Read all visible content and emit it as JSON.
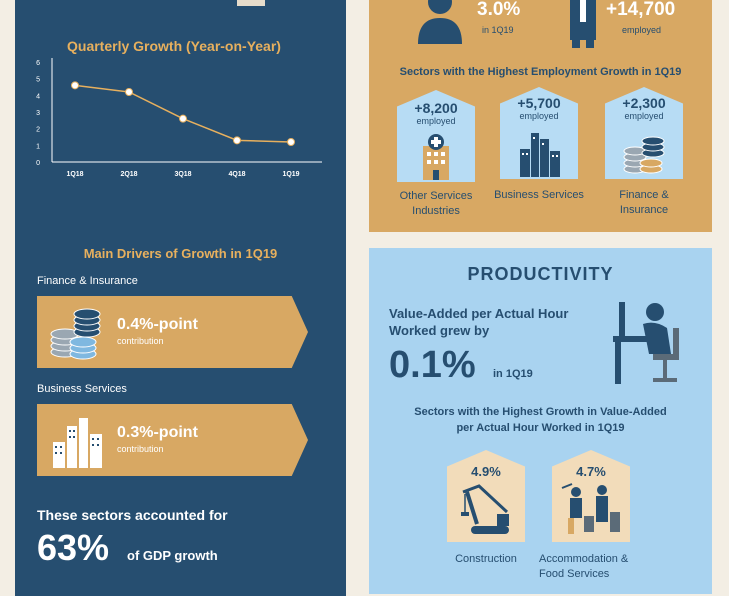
{
  "left": {
    "chart_title": "Quarterly Growth (Year-on-Year)",
    "drivers_title": "Main Drivers of Growth in 1Q19",
    "driver1": {
      "name": "Finance & Insurance",
      "value": "0.4%-point",
      "sub": "contribution"
    },
    "driver2": {
      "name": "Business Services",
      "value": "0.3%-point",
      "sub": "contribution"
    },
    "summary_line": "These sectors accounted for",
    "summary_pct": "63%",
    "summary_tail": "of GDP growth"
  },
  "chart_data": {
    "type": "line",
    "title": "Quarterly Growth (Year-on-Year)",
    "categories": [
      "1Q18",
      "2Q18",
      "3Q18",
      "4Q18",
      "1Q19"
    ],
    "values": [
      4.6,
      4.2,
      2.6,
      1.3,
      1.2
    ],
    "y_ticks": [
      "0",
      "1",
      "2",
      "3",
      "4",
      "5",
      "6"
    ],
    "ylim": [
      0,
      6
    ],
    "grid": false,
    "colors": {
      "line": "#e7b05e",
      "point": "#ffffff"
    }
  },
  "employment": {
    "stat1_value": "3.0%",
    "stat1_sub": "in 1Q19",
    "stat2_value": "+14,700",
    "stat2_sub": "employed",
    "sectors_title": "Sectors with the Highest Employment Growth in 1Q19",
    "sectors": [
      {
        "value": "+8,200",
        "sub": "employed",
        "label": "Other Services Industries"
      },
      {
        "value": "+5,700",
        "sub": "employed",
        "label": "Business Services"
      },
      {
        "value": "+2,300",
        "sub": "employed",
        "label": "Finance & Insurance"
      }
    ]
  },
  "productivity": {
    "title": "PRODUCTIVITY",
    "desc_line1": "Value-Added per Actual Hour",
    "desc_line2": "Worked grew by",
    "value": "0.1%",
    "value_sub": "in 1Q19",
    "sectors_title_line1": "Sectors with the Highest Growth in Value-Added",
    "sectors_title_line2": "per Actual Hour Worked in 1Q19",
    "sectors": [
      {
        "value": "4.9%",
        "label": "Construction"
      },
      {
        "value": "4.7%",
        "label": "Accommodation & Food Services"
      }
    ]
  },
  "colors": {
    "navy": "#264e70",
    "gold": "#d8a863",
    "light_blue": "#a9d3f0",
    "accent_gold_text": "#e7b05e"
  }
}
